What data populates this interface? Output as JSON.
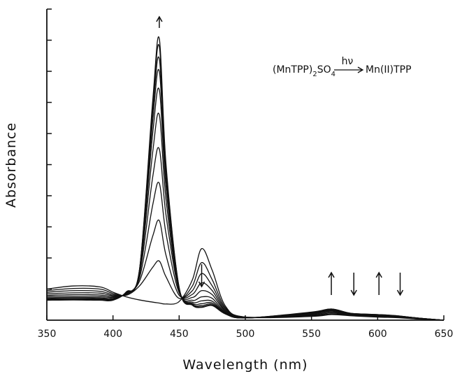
{
  "chart_data": {
    "type": "line",
    "title": "",
    "xlabel": "Wavelength (nm)",
    "ylabel": "Absorbance",
    "xlim": [
      350,
      650
    ],
    "ylim": [
      0,
      1.0
    ],
    "x_ticks": [
      "350",
      "400",
      "450",
      "500",
      "550",
      "600",
      "650"
    ],
    "y_tick_count": 10,
    "grid": false,
    "legend": "none",
    "annotation": {
      "reactant_main": "(MnTPP)",
      "reactant_sub": "2",
      "reactant_main2": "SO",
      "reactant_sub2": "4",
      "arrow_label": "hν",
      "product": "Mn(II)TPP"
    },
    "change_arrows": [
      {
        "x": 435,
        "direction": "up"
      },
      {
        "x": 467,
        "direction": "down"
      },
      {
        "x": 565,
        "direction": "up"
      },
      {
        "x": 582,
        "direction": "down"
      },
      {
        "x": 601,
        "direction": "up"
      },
      {
        "x": 617,
        "direction": "down"
      }
    ],
    "series": [
      {
        "x": [
          350,
          370,
          390,
          400,
          410,
          420,
          430,
          435,
          440,
          450,
          460,
          467,
          475,
          485,
          500,
          550,
          565,
          580,
          600,
          615,
          630,
          650
        ],
        "y": [
          0.1,
          0.11,
          0.107,
          0.09,
          0.075,
          0.065,
          0.058,
          0.055,
          0.052,
          0.06,
          0.13,
          0.23,
          0.16,
          0.045,
          0.01,
          0.012,
          0.018,
          0.014,
          0.01,
          0.008,
          0.004,
          0.0
        ]
      },
      {
        "x": [
          350,
          370,
          390,
          400,
          410,
          420,
          430,
          435,
          440,
          450,
          460,
          467,
          475,
          485,
          500,
          550,
          565,
          580,
          600,
          615,
          630,
          650
        ],
        "y": [
          0.095,
          0.102,
          0.1,
          0.086,
          0.08,
          0.11,
          0.17,
          0.19,
          0.14,
          0.07,
          0.11,
          0.185,
          0.13,
          0.04,
          0.01,
          0.014,
          0.02,
          0.015,
          0.012,
          0.009,
          0.004,
          0.0
        ]
      },
      {
        "x": [
          350,
          370,
          390,
          400,
          410,
          420,
          430,
          435,
          440,
          450,
          460,
          467,
          475,
          485,
          500,
          550,
          565,
          580,
          600,
          615,
          630,
          650
        ],
        "y": [
          0.09,
          0.095,
          0.093,
          0.082,
          0.082,
          0.125,
          0.27,
          0.32,
          0.21,
          0.08,
          0.095,
          0.15,
          0.11,
          0.036,
          0.009,
          0.016,
          0.023,
          0.016,
          0.013,
          0.01,
          0.005,
          0.0
        ]
      },
      {
        "x": [
          350,
          370,
          390,
          400,
          410,
          420,
          430,
          435,
          440,
          450,
          460,
          467,
          475,
          485,
          500,
          550,
          565,
          580,
          600,
          615,
          630,
          650
        ],
        "y": [
          0.085,
          0.088,
          0.087,
          0.079,
          0.084,
          0.135,
          0.37,
          0.44,
          0.28,
          0.088,
          0.083,
          0.12,
          0.095,
          0.032,
          0.009,
          0.018,
          0.026,
          0.017,
          0.014,
          0.011,
          0.005,
          0.0
        ]
      },
      {
        "x": [
          350,
          370,
          390,
          400,
          410,
          420,
          430,
          435,
          440,
          450,
          460,
          467,
          475,
          485,
          500,
          550,
          565,
          580,
          600,
          615,
          630,
          650
        ],
        "y": [
          0.08,
          0.082,
          0.081,
          0.076,
          0.086,
          0.145,
          0.46,
          0.55,
          0.34,
          0.093,
          0.073,
          0.095,
          0.082,
          0.029,
          0.008,
          0.02,
          0.029,
          0.018,
          0.015,
          0.012,
          0.006,
          0.0
        ]
      },
      {
        "x": [
          350,
          370,
          390,
          400,
          410,
          420,
          430,
          435,
          440,
          450,
          460,
          467,
          475,
          485,
          500,
          550,
          565,
          580,
          600,
          615,
          630,
          650
        ],
        "y": [
          0.076,
          0.077,
          0.076,
          0.073,
          0.087,
          0.15,
          0.54,
          0.66,
          0.39,
          0.097,
          0.064,
          0.075,
          0.07,
          0.026,
          0.008,
          0.022,
          0.031,
          0.019,
          0.016,
          0.012,
          0.006,
          0.0
        ]
      },
      {
        "x": [
          350,
          370,
          390,
          400,
          410,
          420,
          430,
          435,
          440,
          450,
          460,
          467,
          475,
          485,
          500,
          550,
          565,
          580,
          600,
          615,
          630,
          650
        ],
        "y": [
          0.072,
          0.073,
          0.072,
          0.07,
          0.088,
          0.155,
          0.6,
          0.74,
          0.43,
          0.1,
          0.058,
          0.062,
          0.061,
          0.024,
          0.007,
          0.023,
          0.033,
          0.02,
          0.016,
          0.013,
          0.006,
          0.0
        ]
      },
      {
        "x": [
          350,
          370,
          390,
          400,
          410,
          420,
          430,
          435,
          440,
          450,
          460,
          467,
          475,
          485,
          500,
          550,
          565,
          580,
          600,
          615,
          630,
          650
        ],
        "y": [
          0.069,
          0.07,
          0.069,
          0.068,
          0.089,
          0.158,
          0.64,
          0.8,
          0.46,
          0.102,
          0.054,
          0.053,
          0.055,
          0.022,
          0.007,
          0.024,
          0.034,
          0.021,
          0.017,
          0.013,
          0.007,
          0.0
        ]
      },
      {
        "x": [
          350,
          370,
          390,
          400,
          410,
          420,
          430,
          435,
          440,
          450,
          460,
          467,
          475,
          485,
          500,
          550,
          565,
          580,
          600,
          615,
          630,
          650
        ],
        "y": [
          0.067,
          0.068,
          0.067,
          0.066,
          0.09,
          0.16,
          0.67,
          0.84,
          0.48,
          0.103,
          0.051,
          0.047,
          0.051,
          0.021,
          0.007,
          0.025,
          0.035,
          0.021,
          0.017,
          0.013,
          0.007,
          0.0
        ]
      },
      {
        "x": [
          350,
          370,
          390,
          400,
          410,
          420,
          430,
          435,
          440,
          450,
          460,
          467,
          475,
          485,
          500,
          550,
          565,
          580,
          600,
          615,
          630,
          650
        ],
        "y": [
          0.065,
          0.066,
          0.065,
          0.065,
          0.09,
          0.161,
          0.69,
          0.88,
          0.495,
          0.104,
          0.049,
          0.043,
          0.048,
          0.02,
          0.007,
          0.025,
          0.036,
          0.022,
          0.018,
          0.014,
          0.007,
          0.0
        ]
      },
      {
        "x": [
          350,
          370,
          390,
          400,
          410,
          420,
          430,
          435,
          440,
          450,
          460,
          467,
          475,
          485,
          500,
          550,
          565,
          580,
          600,
          615,
          630,
          650
        ],
        "y": [
          0.064,
          0.065,
          0.064,
          0.064,
          0.091,
          0.162,
          0.705,
          0.905,
          0.505,
          0.105,
          0.048,
          0.041,
          0.047,
          0.02,
          0.007,
          0.026,
          0.036,
          0.022,
          0.018,
          0.014,
          0.007,
          0.0
        ]
      }
    ]
  }
}
